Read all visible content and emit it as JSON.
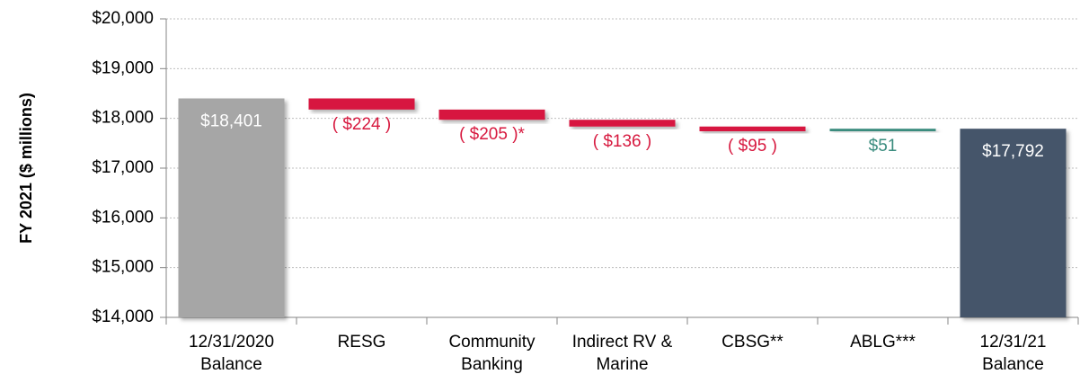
{
  "chart_data": {
    "type": "waterfall",
    "y_axis_label": "FY 2021 ($ millions)",
    "categories": [
      [
        "12/31/2020",
        "Balance"
      ],
      [
        "RESG"
      ],
      [
        "Community",
        "Banking"
      ],
      [
        "Indirect RV &",
        "Marine"
      ],
      [
        "CBSG**"
      ],
      [
        "ABLG***"
      ],
      [
        "12/31/21",
        "Balance"
      ]
    ],
    "values": [
      18401,
      -224,
      -205,
      -136,
      -95,
      51,
      17792
    ],
    "value_labels": [
      "$18,401",
      "( $224 )",
      "( $205 )*",
      "( $136 )",
      "( $95 )",
      "$51",
      "$17,792"
    ],
    "measure": [
      "absolute",
      "relative",
      "relative",
      "relative",
      "relative",
      "relative",
      "absolute"
    ],
    "colors": [
      "#a6a6a6",
      "#d7193f",
      "#d7193f",
      "#d7193f",
      "#d7193f",
      "#3a8c7e",
      "#44546a"
    ],
    "ylim": [
      14000,
      20000
    ],
    "yticks": [
      {
        "value": 14000,
        "label": "$14,000"
      },
      {
        "value": 15000,
        "label": "$15,000"
      },
      {
        "value": 16000,
        "label": "$16,000"
      },
      {
        "value": 17000,
        "label": "$17,000"
      },
      {
        "value": 18000,
        "label": "$18,000"
      },
      {
        "value": 19000,
        "label": "$19,000"
      },
      {
        "value": 20000,
        "label": "$20,000"
      }
    ],
    "grid": true
  }
}
